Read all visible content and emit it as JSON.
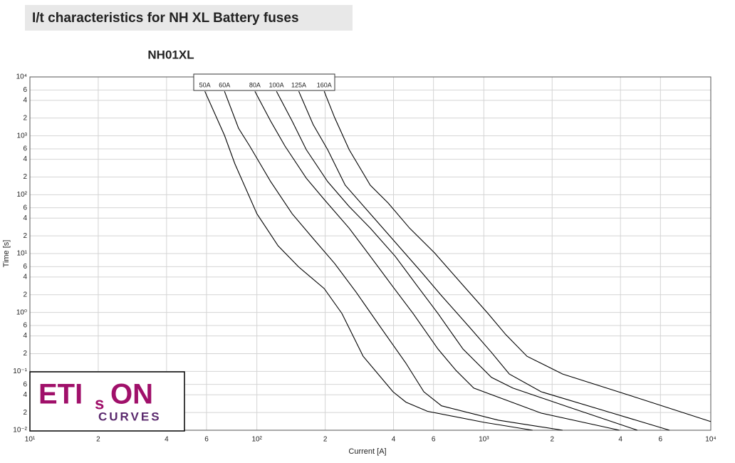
{
  "chart_data": {
    "type": "line",
    "title": "I/t characteristics for NH XL Battery fuses",
    "subtitle": "NH01XL",
    "x_label": "Current [A]",
    "y_label": "Time [s]",
    "xscale": "log",
    "yscale": "log",
    "grid": true,
    "xlim": [
      10,
      10000
    ],
    "ylim": [
      0.01,
      10000
    ],
    "xticks": [
      {
        "value": 10,
        "label": "10¹"
      },
      {
        "value": 20,
        "label": "2"
      },
      {
        "value": 40,
        "label": "4"
      },
      {
        "value": 60,
        "label": "6"
      },
      {
        "value": 100,
        "label": "10²"
      },
      {
        "value": 200,
        "label": "2"
      },
      {
        "value": 400,
        "label": "4"
      },
      {
        "value": 600,
        "label": "6"
      },
      {
        "value": 1000,
        "label": "10³"
      },
      {
        "value": 2000,
        "label": "2"
      },
      {
        "value": 4000,
        "label": "4"
      },
      {
        "value": 6000,
        "label": "6"
      },
      {
        "value": 10000,
        "label": "10⁴"
      }
    ],
    "yticks": [
      {
        "value": 10000,
        "label": "10⁴"
      },
      {
        "value": 6000,
        "label": "6"
      },
      {
        "value": 4000,
        "label": "4"
      },
      {
        "value": 2000,
        "label": "2"
      },
      {
        "value": 1000,
        "label": "10³"
      },
      {
        "value": 600,
        "label": "6"
      },
      {
        "value": 400,
        "label": "4"
      },
      {
        "value": 200,
        "label": "2"
      },
      {
        "value": 100,
        "label": "10²"
      },
      {
        "value": 60,
        "label": "6"
      },
      {
        "value": 40,
        "label": "4"
      },
      {
        "value": 20,
        "label": "2"
      },
      {
        "value": 10,
        "label": "10¹"
      },
      6,
      4,
      2,
      {
        "value": 1,
        "label": "10⁰"
      },
      {
        "value": 0.6,
        "label": "6"
      },
      {
        "value": 0.4,
        "label": "4"
      },
      {
        "value": 0.2,
        "label": "2"
      },
      {
        "value": 0.1,
        "label": "10⁻¹"
      },
      {
        "value": 0.06,
        "label": "6"
      },
      {
        "value": 0.04,
        "label": "4"
      },
      {
        "value": 0.02,
        "label": "2"
      },
      {
        "value": 0.01,
        "label": "10⁻²"
      }
    ],
    "series": [
      {
        "name": "50A",
        "color": "#000000",
        "x": [
          59,
          72,
          80,
          100,
          124,
          153,
          198,
          237,
          294,
          398,
          454,
          564,
          1005,
          1640
        ],
        "values": [
          5700,
          1020,
          334,
          47.5,
          13.6,
          5.9,
          2.55,
          0.96,
          0.18,
          0.045,
          0.03,
          0.021,
          0.0136,
          0.01
        ]
      },
      {
        "name": "60A",
        "color": "#000000",
        "x": [
          72,
          83,
          93,
          115,
          143,
          177,
          220,
          274,
          352,
          454,
          544,
          651,
          1160,
          2225
        ],
        "values": [
          5700,
          1345,
          671,
          167,
          47.5,
          18,
          6.8,
          2.2,
          0.55,
          0.137,
          0.045,
          0.026,
          0.0148,
          0.01
        ]
      },
      {
        "name": "80A",
        "color": "#000000",
        "x": [
          98,
          115,
          133,
          165,
          198,
          255,
          316,
          393,
          488,
          628,
          753,
          902,
          1790,
          3960
        ],
        "values": [
          5700,
          1780,
          671,
          191,
          83,
          27,
          9,
          2.9,
          0.96,
          0.24,
          0.104,
          0.052,
          0.0195,
          0.01
        ]
      },
      {
        "name": "100A",
        "color": "#000000",
        "x": [
          122,
          143,
          165,
          205,
          255,
          316,
          407,
          506,
          628,
          809,
          1080,
          1342,
          2390,
          4750
        ],
        "values": [
          5700,
          1780,
          583,
          167,
          63,
          27,
          9,
          2.9,
          0.96,
          0.24,
          0.079,
          0.052,
          0.0244,
          0.01
        ]
      },
      {
        "name": "125A",
        "color": "#000000",
        "x": [
          153,
          177,
          205,
          245,
          316,
          407,
          525,
          651,
          869,
          1080,
          1295,
          1790,
          3690,
          6580
        ],
        "values": [
          5700,
          1550,
          583,
          145,
          47.5,
          15.6,
          5.1,
          1.93,
          0.55,
          0.21,
          0.09,
          0.045,
          0.0195,
          0.01
        ]
      },
      {
        "name": "160A",
        "color": "#000000",
        "x": [
          198,
          220,
          255,
          316,
          379,
          471,
          606,
          809,
          1043,
          1250,
          1550,
          2225,
          4920,
          10000
        ],
        "values": [
          5700,
          2050,
          583,
          145,
          72,
          27,
          10.3,
          2.9,
          0.96,
          0.42,
          0.18,
          0.09,
          0.034,
          0.014
        ]
      }
    ]
  },
  "logo": {
    "left": "ETI",
    "middle": "s",
    "right": "ON",
    "tagline": "CURVES"
  }
}
